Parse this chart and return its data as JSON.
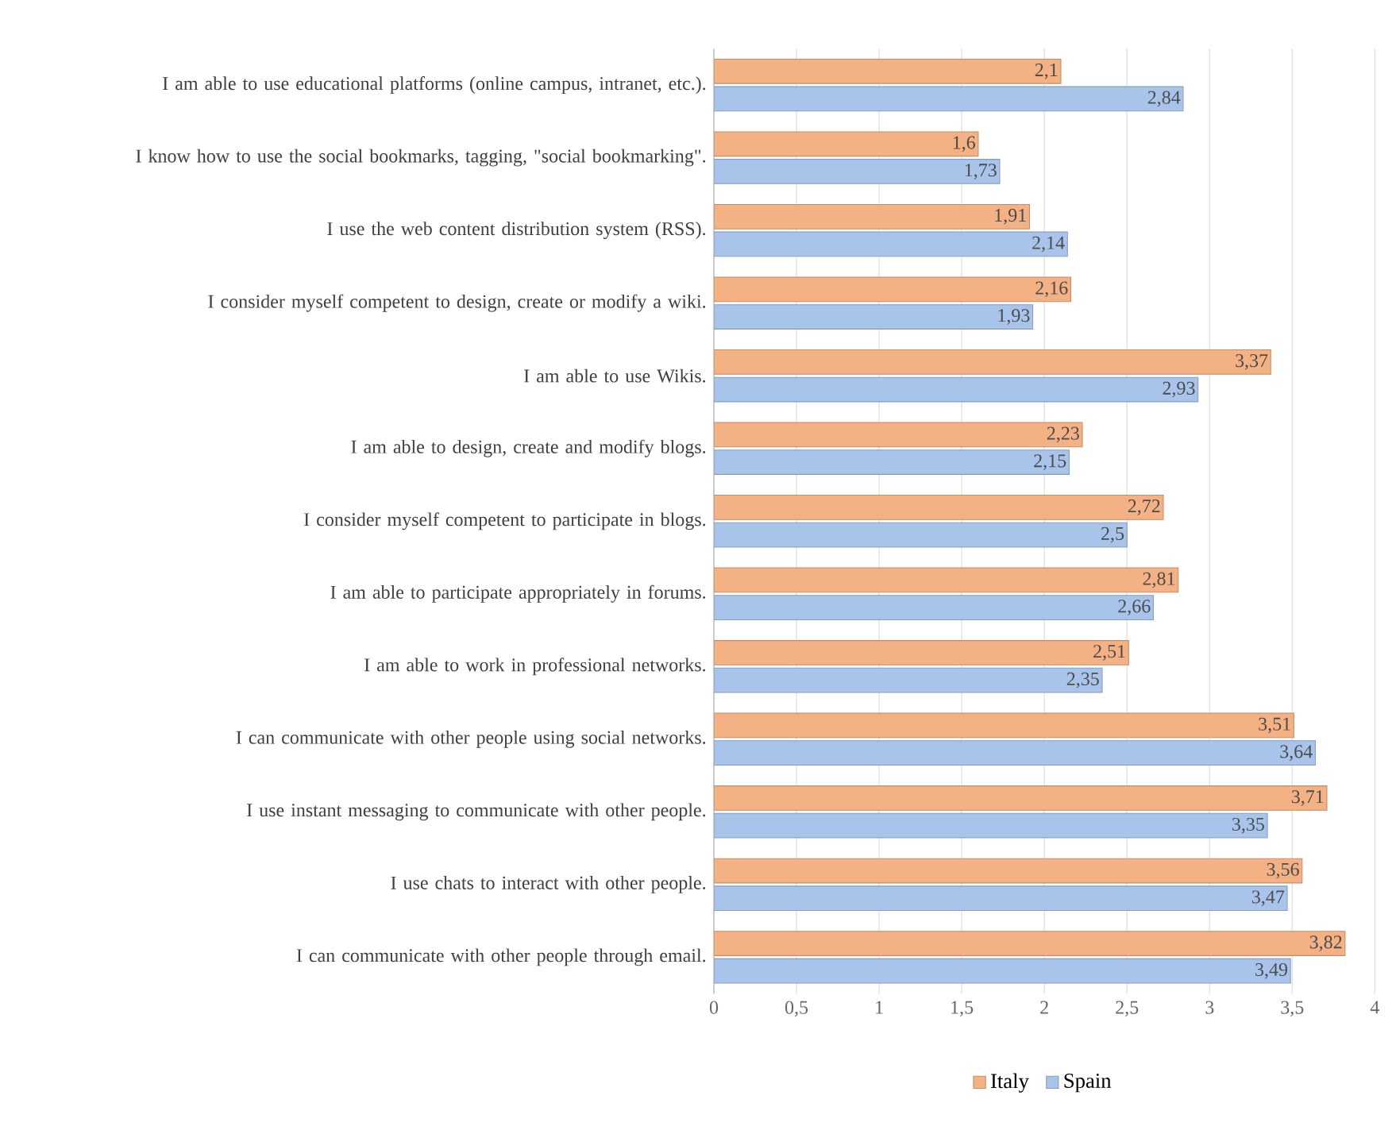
{
  "chart_data": {
    "type": "bar",
    "orientation": "horizontal",
    "categories": [
      "I am able to use educational platforms (online campus, intranet, etc.).",
      "I know how to use the social bookmarks, tagging, \"social bookmarking\".",
      "I use the web content distribution system (RSS).",
      "I consider myself competent to design, create or modify a wiki.",
      "I am able to use Wikis.",
      "I am able to design, create and modify blogs.",
      "I consider myself competent to participate in blogs.",
      "I am able to participate appropriately in forums.",
      "I am able to work in professional networks.",
      "I can communicate with other people using social networks.",
      "I use instant messaging to communicate with other people.",
      "I use chats to interact with other people.",
      "I can communicate with other people through email."
    ],
    "series": [
      {
        "name": "Italy",
        "color": "#f4b183",
        "values": [
          2.1,
          1.6,
          1.91,
          2.16,
          3.37,
          2.23,
          2.72,
          2.81,
          2.51,
          3.51,
          3.71,
          3.56,
          3.82
        ],
        "value_labels": [
          "2,1",
          "1,6",
          "1,91",
          "2,16",
          "3,37",
          "2,23",
          "2,72",
          "2,81",
          "2,51",
          "3,51",
          "3,71",
          "3,56",
          "3,82"
        ]
      },
      {
        "name": "Spain",
        "color": "#a9c4eb",
        "values": [
          2.84,
          1.73,
          2.14,
          1.93,
          2.93,
          2.15,
          2.5,
          2.66,
          2.35,
          3.64,
          3.35,
          3.47,
          3.49
        ],
        "value_labels": [
          "2,84",
          "1,73",
          "2,14",
          "1,93",
          "2,93",
          "2,15",
          "2,5",
          "2,66",
          "2,35",
          "3,64",
          "3,35",
          "3,47",
          "3,49"
        ]
      }
    ],
    "xlim": [
      0,
      4
    ],
    "xticks": [
      0,
      {
        "value": 0.5,
        "label": "0,5"
      },
      1,
      {
        "value": 1.5,
        "label": "1,5"
      },
      2,
      {
        "value": 2.5,
        "label": "2,5"
      },
      3,
      {
        "value": 3.5,
        "label": "3,5"
      },
      4
    ],
    "grid": "x",
    "legend": "bottom"
  }
}
